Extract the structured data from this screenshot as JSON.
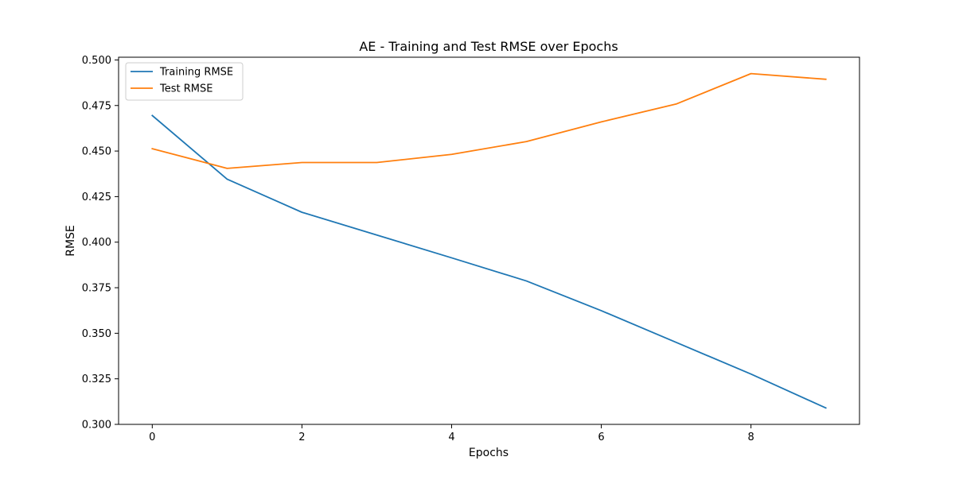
{
  "chart_data": {
    "type": "line",
    "title": "AE - Training and Test RMSE over Epochs",
    "xlabel": "Epochs",
    "ylabel": "RMSE",
    "xlim": [
      -0.45,
      9.45
    ],
    "ylim": [
      0.3,
      0.5015
    ],
    "xticks": [
      0,
      2,
      4,
      6,
      8
    ],
    "xtick_labels": [
      "0",
      "2",
      "4",
      "6",
      "8"
    ],
    "yticks": [
      0.3,
      0.325,
      0.35,
      0.375,
      0.4,
      0.425,
      0.45,
      0.475,
      0.5
    ],
    "ytick_labels": [
      "0.300",
      "0.325",
      "0.350",
      "0.375",
      "0.400",
      "0.425",
      "0.450",
      "0.475",
      "0.500"
    ],
    "grid": false,
    "legend_position": "top-left",
    "x": [
      0,
      1,
      2,
      3,
      4,
      5,
      6,
      7,
      8,
      9
    ],
    "series": [
      {
        "name": "Training RMSE",
        "color": "#1f77b4",
        "values": [
          0.4695,
          0.4346,
          0.4164,
          0.4039,
          0.3914,
          0.3787,
          0.3624,
          0.345,
          0.3276,
          0.309
        ]
      },
      {
        "name": "Test RMSE",
        "color": "#ff7f0e",
        "values": [
          0.4513,
          0.4405,
          0.4437,
          0.4437,
          0.4482,
          0.4552,
          0.466,
          0.4758,
          0.4925,
          0.4894
        ]
      }
    ]
  }
}
